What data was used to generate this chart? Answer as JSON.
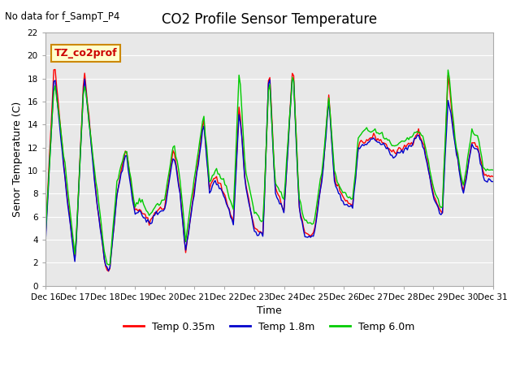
{
  "title": "CO2 Profile Sensor Temperature",
  "subtitle": "No data for f_SampT_P4",
  "ylabel": "Senor Temperature (C)",
  "xlabel": "Time",
  "box_label": "TZ_co2prof",
  "ylim": [
    0,
    22
  ],
  "yticks": [
    0,
    2,
    4,
    6,
    8,
    10,
    12,
    14,
    16,
    18,
    20,
    22
  ],
  "xtick_labels": [
    "Dec 16",
    "Dec 17",
    "Dec 18",
    "Dec 19",
    "Dec 20",
    "Dec 21",
    "Dec 22",
    "Dec 23",
    "Dec 24",
    "Dec 25",
    "Dec 26",
    "Dec 27",
    "Dec 28",
    "Dec 29",
    "Dec 30",
    "Dec 31"
  ],
  "bg_color": "#e8e8e8",
  "legend_entries": [
    "Temp 0.35m",
    "Temp 1.8m",
    "Temp 6.0m"
  ],
  "legend_colors": [
    "#ff0000",
    "#0000cc",
    "#00cc00"
  ],
  "line_width": 1.0,
  "key_times": [
    0,
    0.3,
    0.7,
    1.0,
    1.3,
    1.7,
    2.0,
    2.15,
    2.4,
    2.7,
    3.0,
    3.2,
    3.5,
    3.7,
    4.0,
    4.3,
    4.5,
    4.7,
    5.0,
    5.3,
    5.5,
    5.7,
    6.0,
    6.3,
    6.5,
    6.7,
    7.0,
    7.3,
    7.5,
    7.7,
    8.0,
    8.3,
    8.5,
    8.7,
    9.0,
    9.3,
    9.5,
    9.7,
    10.0,
    10.3,
    10.5,
    10.7,
    11.0,
    11.3,
    11.5,
    11.7,
    12.0,
    12.3,
    12.5,
    12.7,
    13.0,
    13.3,
    13.5,
    13.7,
    14.0,
    14.3,
    14.5,
    14.7,
    15.0,
    15.3,
    15.5,
    15.7,
    15.0
  ],
  "key_vals_035": [
    4.0,
    19.5,
    8.5,
    2.0,
    19.0,
    8.0,
    1.8,
    1.2,
    8.0,
    12.0,
    6.5,
    6.5,
    5.5,
    6.5,
    6.8,
    12.0,
    8.5,
    3.0,
    8.5,
    14.5,
    8.5,
    9.5,
    8.0,
    5.5,
    16.0,
    9.0,
    5.0,
    4.5,
    19.5,
    8.5,
    6.5,
    19.5,
    7.0,
    4.5,
    4.5,
    10.0,
    16.5,
    9.0,
    7.5,
    7.0,
    12.5,
    12.5,
    13.0,
    12.5,
    12.0,
    11.5,
    12.0,
    12.5,
    13.5,
    12.0,
    8.0,
    6.0,
    18.5,
    13.0,
    8.0,
    12.5,
    12.0,
    9.5,
    9.5,
    10.5,
    14.0,
    11.0,
    11.0
  ],
  "key_vals_18": [
    3.5,
    18.5,
    8.2,
    1.8,
    18.5,
    7.8,
    1.8,
    1.2,
    7.8,
    11.5,
    6.3,
    6.3,
    5.3,
    6.3,
    6.6,
    11.5,
    8.2,
    2.8,
    8.2,
    14.2,
    8.2,
    9.2,
    7.8,
    5.3,
    15.5,
    8.8,
    4.8,
    4.3,
    19.2,
    8.2,
    6.3,
    19.2,
    6.8,
    4.3,
    4.3,
    9.8,
    16.2,
    8.8,
    7.2,
    6.8,
    12.2,
    12.2,
    12.8,
    12.2,
    11.8,
    11.2,
    11.8,
    12.2,
    13.2,
    11.8,
    7.8,
    5.8,
    16.5,
    12.8,
    7.8,
    12.2,
    11.8,
    9.2,
    9.2,
    10.2,
    13.8,
    10.8,
    10.8
  ],
  "key_vals_60": [
    4.2,
    18.0,
    9.5,
    2.5,
    18.0,
    9.0,
    2.5,
    1.5,
    9.0,
    12.0,
    7.0,
    7.5,
    6.0,
    7.0,
    7.5,
    12.5,
    9.5,
    4.0,
    9.5,
    15.0,
    9.0,
    10.0,
    9.0,
    6.5,
    19.0,
    10.0,
    6.5,
    5.5,
    18.5,
    9.0,
    7.5,
    19.0,
    7.5,
    5.5,
    5.5,
    10.5,
    16.5,
    9.5,
    8.0,
    7.5,
    13.0,
    13.5,
    13.5,
    13.0,
    12.5,
    12.0,
    12.5,
    13.0,
    13.5,
    12.5,
    8.5,
    6.5,
    19.0,
    13.5,
    8.5,
    13.5,
    13.0,
    10.0,
    10.0,
    11.0,
    14.0,
    11.5,
    11.5
  ]
}
